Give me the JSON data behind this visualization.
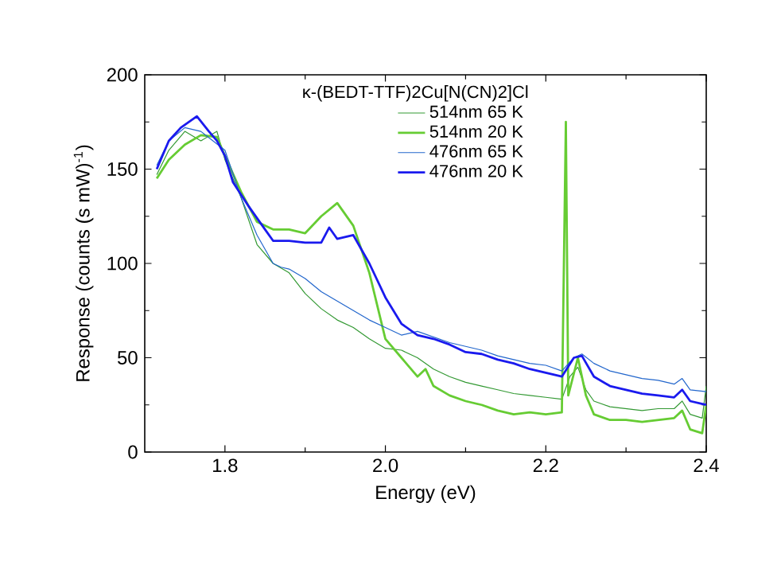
{
  "chart_data": {
    "type": "line",
    "xlabel": "Energy (eV)",
    "ylabel": "Response (counts (s mW)$^{-1}$)",
    "legend_title": "κ-(BEDT-TTF)2Cu[N(CN)2]Cl",
    "legend": "top right",
    "grid": false,
    "marker": "none",
    "line_style": "solid",
    "xlim": [
      1.7,
      2.4
    ],
    "ylim": [
      0,
      200
    ],
    "xticks": [
      {
        "value": 1.8,
        "label": "1.8"
      },
      {
        "value": 2.0,
        "label": "2.0"
      },
      {
        "value": 2.2,
        "label": "2.2"
      },
      {
        "value": 2.4,
        "label": "2.4"
      }
    ],
    "yticks": [
      0,
      50,
      100,
      150,
      200
    ],
    "series": [
      {
        "name": "514nm 65 K",
        "color": "#339933",
        "x": [
          1.715,
          1.73,
          1.75,
          1.77,
          1.79,
          1.8,
          1.82,
          1.84,
          1.86,
          1.88,
          1.9,
          1.92,
          1.94,
          1.96,
          1.98,
          2.0,
          2.02,
          2.04,
          2.06,
          2.08,
          2.1,
          2.12,
          2.14,
          2.16,
          2.18,
          2.2,
          2.22,
          2.23,
          2.24,
          2.25,
          2.26,
          2.28,
          2.3,
          2.32,
          2.34,
          2.36,
          2.37,
          2.38,
          2.395,
          2.4
        ],
        "values": [
          147,
          160,
          170,
          165,
          170,
          155,
          135,
          110,
          100,
          95,
          84,
          76,
          70,
          66,
          60,
          55,
          54,
          50,
          44,
          40,
          37,
          35,
          33,
          31,
          30,
          29,
          28,
          40,
          45,
          33,
          27,
          24,
          23,
          22,
          23,
          23,
          27,
          20,
          18,
          35
        ]
      },
      {
        "name": "514nm 20 K",
        "color": "#66cc33",
        "x": [
          1.715,
          1.73,
          1.75,
          1.77,
          1.79,
          1.8,
          1.82,
          1.84,
          1.86,
          1.88,
          1.9,
          1.92,
          1.94,
          1.96,
          1.98,
          2.0,
          2.02,
          2.04,
          2.05,
          2.06,
          2.08,
          2.1,
          2.12,
          2.14,
          2.16,
          2.18,
          2.2,
          2.22,
          2.225,
          2.228,
          2.24,
          2.25,
          2.26,
          2.28,
          2.3,
          2.32,
          2.34,
          2.36,
          2.37,
          2.38,
          2.395,
          2.4
        ],
        "values": [
          145,
          155,
          163,
          168,
          167,
          157,
          138,
          122,
          118,
          118,
          116,
          125,
          132,
          120,
          95,
          60,
          50,
          40,
          44,
          35,
          30,
          27,
          25,
          22,
          20,
          21,
          20,
          21,
          175,
          30,
          50,
          30,
          20,
          17,
          17,
          16,
          17,
          18,
          22,
          12,
          10,
          25
        ]
      },
      {
        "name": "476nm 65 K",
        "color": "#2266cc",
        "x": [
          1.715,
          1.73,
          1.75,
          1.77,
          1.8,
          1.82,
          1.84,
          1.86,
          1.87,
          1.88,
          1.9,
          1.92,
          1.94,
          1.96,
          1.98,
          2.0,
          2.02,
          2.04,
          2.06,
          2.08,
          2.1,
          2.12,
          2.14,
          2.16,
          2.18,
          2.2,
          2.22,
          2.235,
          2.245,
          2.26,
          2.28,
          2.3,
          2.32,
          2.34,
          2.36,
          2.37,
          2.38,
          2.4
        ],
        "values": [
          152,
          165,
          172,
          170,
          160,
          135,
          115,
          100,
          98,
          97,
          92,
          85,
          80,
          75,
          70,
          66,
          62,
          64,
          61,
          58,
          56,
          54,
          51,
          49,
          47,
          46,
          43,
          50,
          52,
          47,
          43,
          41,
          39,
          38,
          36,
          39,
          33,
          32
        ]
      },
      {
        "name": "476nm 20 K",
        "color": "#1a1aee",
        "x": [
          1.715,
          1.73,
          1.745,
          1.765,
          1.78,
          1.79,
          1.8,
          1.81,
          1.83,
          1.85,
          1.86,
          1.88,
          1.9,
          1.92,
          1.93,
          1.94,
          1.96,
          1.98,
          2.0,
          2.02,
          2.04,
          2.06,
          2.08,
          2.1,
          2.12,
          2.14,
          2.16,
          2.18,
          2.2,
          2.22,
          2.235,
          2.245,
          2.26,
          2.28,
          2.3,
          2.32,
          2.34,
          2.36,
          2.37,
          2.38,
          2.4
        ],
        "values": [
          150,
          165,
          172,
          178,
          170,
          165,
          157,
          143,
          130,
          118,
          112,
          112,
          111,
          111,
          119,
          113,
          115,
          100,
          82,
          68,
          62,
          60,
          57,
          53,
          52,
          49,
          47,
          44,
          42,
          40,
          50,
          51,
          40,
          35,
          33,
          31,
          30,
          29,
          33,
          27,
          25
        ]
      }
    ]
  }
}
